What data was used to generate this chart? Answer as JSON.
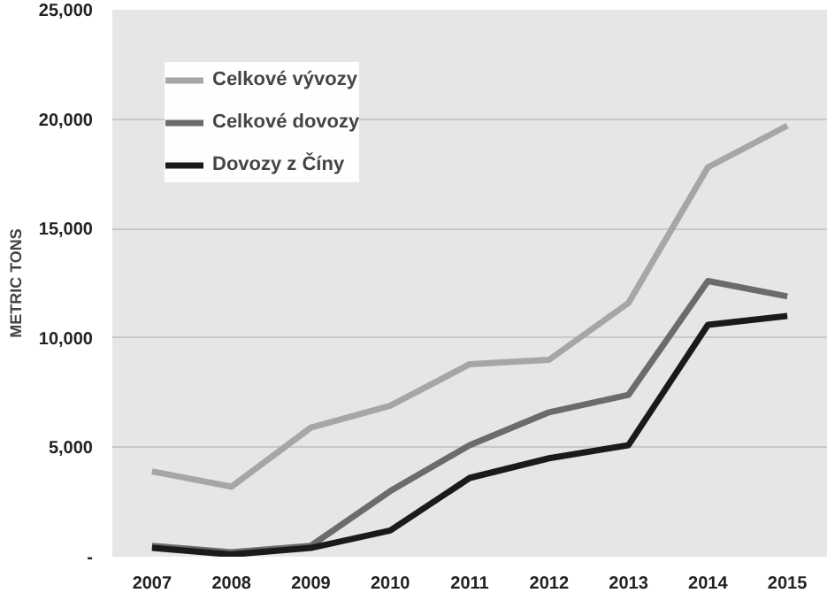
{
  "chart_data": {
    "type": "line",
    "ylabel": "METRIC TONS",
    "categories": [
      "2007",
      "2008",
      "2009",
      "2010",
      "2011",
      "2012",
      "2013",
      "2014",
      "2015"
    ],
    "series": [
      {
        "name": "Celkové vývozy",
        "color": "#a6a6a6",
        "values": [
          3900,
          3200,
          5900,
          6900,
          8800,
          9000,
          11600,
          17800,
          19700
        ]
      },
      {
        "name": "Celkové dovozy",
        "color": "#6b6b6b",
        "values": [
          500,
          200,
          500,
          3000,
          5100,
          6600,
          7400,
          12600,
          11900
        ]
      },
      {
        "name": "Dovozy z Číny",
        "color": "#1a1a1a",
        "values": [
          400,
          100,
          400,
          1200,
          3600,
          4500,
          5100,
          10600,
          11000
        ]
      }
    ],
    "ylim": [
      0,
      25000
    ],
    "yticks": [
      {
        "value": 0,
        "label": "-"
      },
      {
        "value": 5000,
        "label": "5,000"
      },
      {
        "value": 10000,
        "label": "10,000"
      },
      {
        "value": 15000,
        "label": "15,000"
      },
      {
        "value": 20000,
        "label": "20,000"
      },
      {
        "value": 25000,
        "label": "25,000"
      }
    ],
    "grid": "y",
    "legend": "top left",
    "line_style": "solid",
    "marker": "none"
  }
}
